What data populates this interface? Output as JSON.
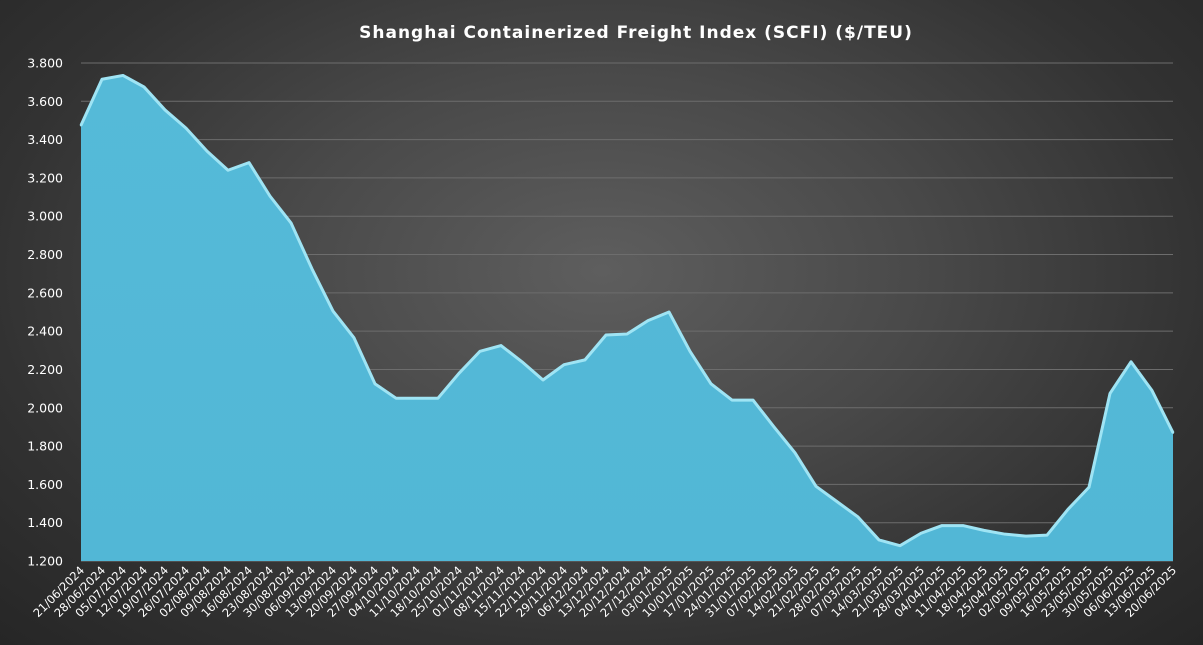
{
  "chart_data": {
    "type": "area",
    "title": "Shanghai Containerized Freight Index  (SCFI) ($/TEU)",
    "xlabel": "",
    "ylabel": "",
    "ylim": [
      1200,
      3800
    ],
    "yticks": [
      "1.200",
      "1.400",
      "1.600",
      "1.800",
      "2.000",
      "2.200",
      "2.400",
      "2.600",
      "2.800",
      "3.000",
      "3.200",
      "3.400",
      "3.600",
      "3.800"
    ],
    "grid": true,
    "legend": "none",
    "colors": {
      "fill": "#52b7d6",
      "edge": "#9fe4f4",
      "text": "#ffffff",
      "grid": "#6d6d6d"
    },
    "x_tick_labels": [
      "21/06/2024",
      "28/06/2024",
      "05/07/2024",
      "12/07/2024",
      "19/07/2024",
      "26/07/2024",
      "02/08/2024",
      "09/08/2024",
      "16/08/2024",
      "23/08/2024",
      "30/08/2024",
      "06/09/2024",
      "13/09/2024",
      "20/09/2024",
      "27/09/2024",
      "04/10/2024",
      "11/10/2024",
      "18/10/2024",
      "25/10/2024",
      "01/11/2024",
      "08/11/2024",
      "15/11/2024",
      "22/11/2024",
      "29/11/2024",
      "06/12/2024",
      "13/12/2024",
      "20/12/2024",
      "27/12/2024",
      "03/01/2025",
      "10/01/2025",
      "17/01/2025",
      "24/01/2025",
      "31/01/2025",
      "07/02/2025",
      "14/02/2025",
      "21/02/2025",
      "28/02/2025",
      "07/03/2025",
      "14/03/2025",
      "21/03/2025",
      "28/03/2025",
      "04/04/2025",
      "11/04/2025",
      "18/04/2025",
      "25/04/2025",
      "02/05/2025",
      "09/05/2025",
      "16/05/2025",
      "23/05/2025",
      "30/05/2025",
      "06/06/2025",
      "13/06/2025",
      "20/06/2025"
    ],
    "x": [
      "21/06/2024",
      "28/06/2024",
      "05/07/2024",
      "12/07/2024",
      "19/07/2024",
      "26/07/2024",
      "02/08/2024",
      "09/08/2024",
      "16/08/2024",
      "23/08/2024",
      "30/08/2024",
      "06/09/2024",
      "13/09/2024",
      "20/09/2024",
      "27/09/2024",
      "04/10/2024",
      "11/10/2024",
      "18/10/2024",
      "25/10/2024",
      "01/11/2024",
      "08/11/2024",
      "15/11/2024",
      "22/11/2024",
      "29/11/2024",
      "06/12/2024",
      "13/12/2024",
      "20/12/2024",
      "27/12/2024",
      "03/01/2025",
      "10/01/2025",
      "17/01/2025",
      "24/01/2025",
      "31/01/2025",
      "07/02/2025",
      "14/02/2025",
      "21/02/2025",
      "28/02/2025",
      "07/03/2025",
      "14/03/2025",
      "21/03/2025",
      "28/03/2025",
      "04/04/2025",
      "11/04/2025",
      "18/04/2025",
      "25/04/2025",
      "02/05/2025",
      "09/05/2025",
      "16/05/2025",
      "23/05/2025",
      "30/05/2025",
      "06/06/2025",
      "13/06/2025",
      "20/06/2025"
    ],
    "series": [
      {
        "values": [
          3475,
          3715,
          3735,
          3675,
          3555,
          3460,
          3340,
          3240,
          3280,
          3105,
          2965,
          2725,
          2505,
          2365,
          2125,
          2050,
          2050,
          2050,
          2180,
          2295,
          2325,
          2240,
          2145,
          2225,
          2250,
          2380,
          2385,
          2455,
          2500,
          2295,
          2125,
          2040,
          2040,
          1900,
          1765,
          1590,
          1510,
          1430,
          1310,
          1280,
          1345,
          1385,
          1385,
          1360,
          1340,
          1330,
          1335,
          1470,
          1585,
          2075,
          2240,
          2090,
          1870
        ]
      }
    ]
  }
}
